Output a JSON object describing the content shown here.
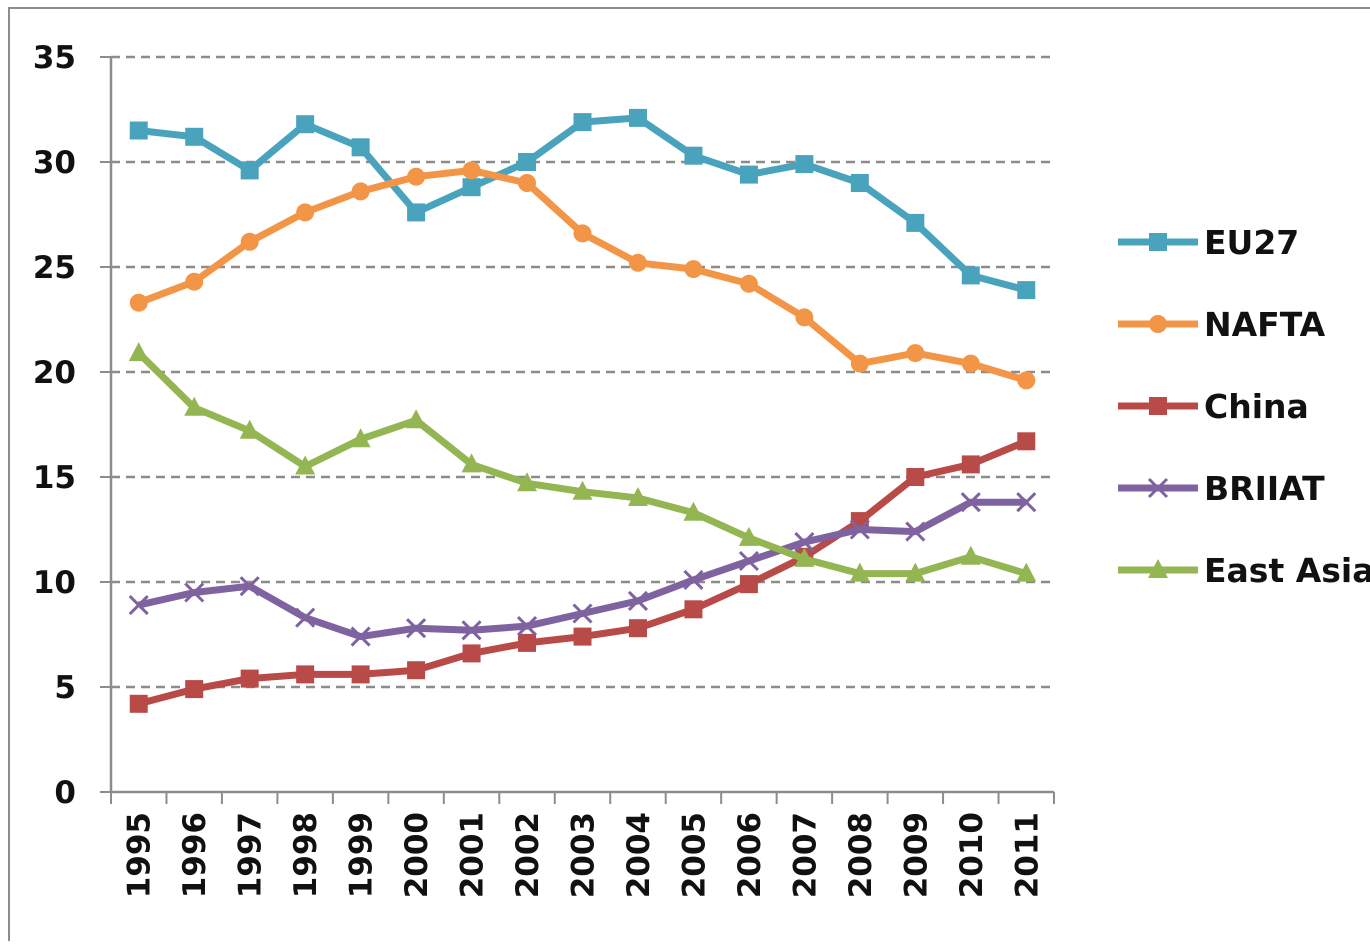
{
  "chart_data": {
    "type": "line",
    "categories": [
      "1995",
      "1996",
      "1997",
      "1998",
      "1999",
      "2000",
      "2001",
      "2002",
      "2003",
      "2004",
      "2005",
      "2006",
      "2007",
      "2008",
      "2009",
      "2010",
      "2011"
    ],
    "series": [
      {
        "name": "EU27",
        "color": "#4aa3bd",
        "marker": "square",
        "values": [
          31.5,
          31.2,
          29.6,
          31.8,
          30.7,
          27.6,
          28.8,
          30.0,
          31.9,
          32.1,
          30.3,
          29.4,
          29.9,
          29.0,
          27.1,
          24.6,
          23.9
        ]
      },
      {
        "name": "NAFTA",
        "color": "#f39547",
        "marker": "circle",
        "values": [
          23.3,
          24.3,
          26.2,
          27.6,
          28.6,
          29.3,
          29.6,
          29.0,
          26.6,
          25.2,
          24.9,
          24.2,
          22.6,
          20.4,
          20.9,
          20.4,
          19.6
        ]
      },
      {
        "name": "China",
        "color": "#b84a47",
        "marker": "square",
        "values": [
          4.2,
          4.9,
          5.4,
          5.6,
          5.6,
          5.8,
          6.6,
          7.1,
          7.4,
          7.8,
          8.7,
          9.9,
          11.2,
          12.9,
          15.0,
          15.6,
          16.7
        ]
      },
      {
        "name": "BRIIAT",
        "color": "#7f62a0",
        "marker": "x",
        "values": [
          8.9,
          9.5,
          9.8,
          8.3,
          7.4,
          7.8,
          7.7,
          7.9,
          8.5,
          9.1,
          10.1,
          11.0,
          11.9,
          12.5,
          12.4,
          13.8,
          13.8
        ]
      },
      {
        "name": "East Asia",
        "color": "#93b653",
        "marker": "triangle",
        "values": [
          20.9,
          18.3,
          17.2,
          15.5,
          16.8,
          17.7,
          15.6,
          14.7,
          14.3,
          14.0,
          13.3,
          12.1,
          11.1,
          10.4,
          10.4,
          11.2,
          10.4
        ]
      }
    ],
    "ylim": [
      0,
      35
    ],
    "yticks": [
      0,
      5,
      10,
      15,
      20,
      25,
      30,
      35
    ],
    "grid": true,
    "legend": "right"
  }
}
